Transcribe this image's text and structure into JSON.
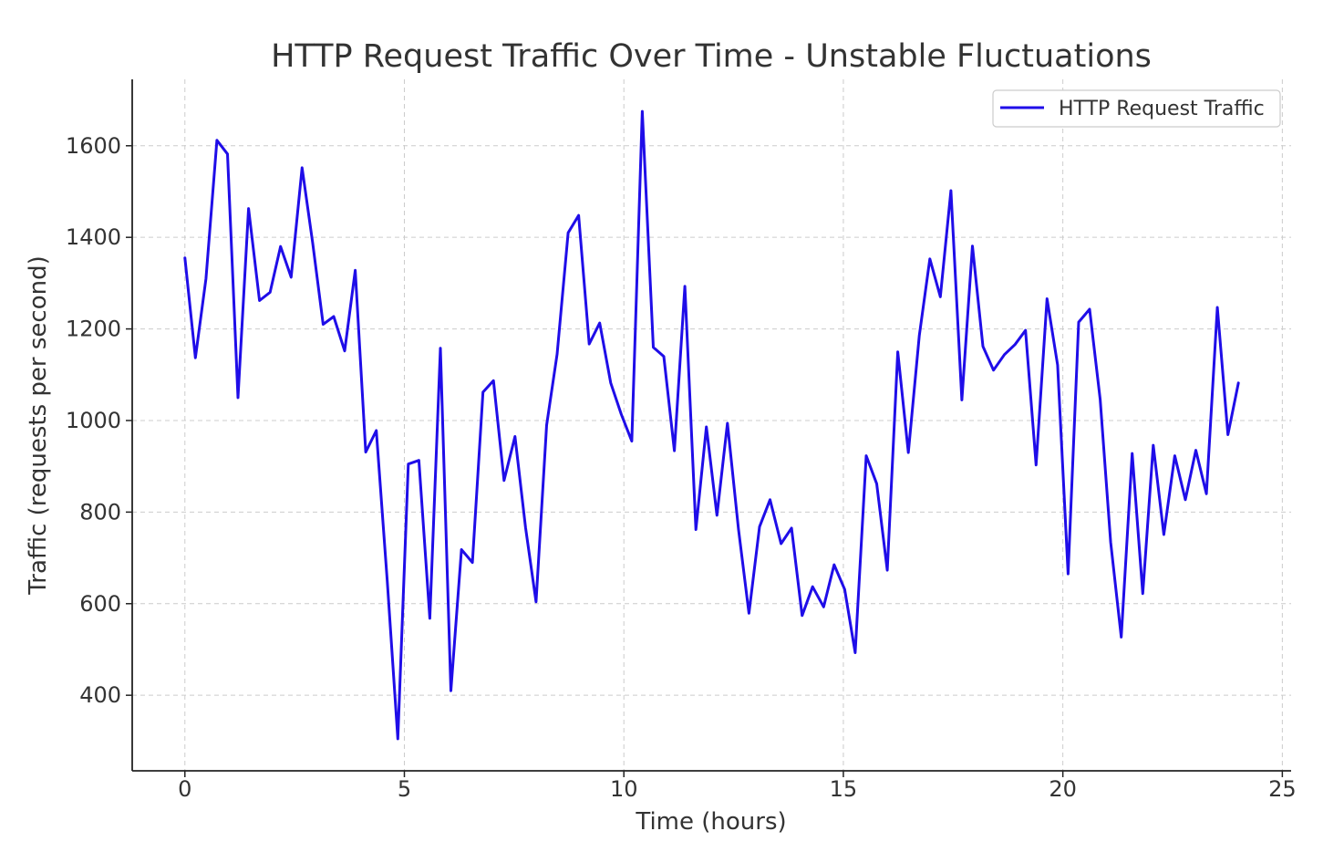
{
  "chart_data": {
    "type": "line",
    "title": "HTTP Request Traffic Over Time - Unstable Fluctuations",
    "xlabel": "Time (hours)",
    "ylabel": "Traffic (requests per second)",
    "xlim": [
      -1.2,
      25.2
    ],
    "ylim": [
      235,
      1745
    ],
    "xticks": [
      0,
      5,
      10,
      15,
      20,
      25
    ],
    "yticks": [
      400,
      600,
      800,
      1000,
      1200,
      1400,
      1600
    ],
    "grid": true,
    "legend_position": "top-right",
    "series": [
      {
        "name": "HTTP Request Traffic",
        "color": "#1f0de8",
        "x": [
          0,
          0.24,
          0.48,
          0.73,
          0.97,
          1.21,
          1.45,
          1.7,
          1.94,
          2.18,
          2.42,
          2.67,
          2.91,
          3.15,
          3.39,
          3.64,
          3.88,
          4.12,
          4.36,
          4.61,
          4.85,
          5.09,
          5.33,
          5.58,
          5.82,
          6.06,
          6.3,
          6.55,
          6.79,
          7.03,
          7.27,
          7.52,
          7.76,
          8.0,
          8.24,
          8.48,
          8.73,
          8.97,
          9.21,
          9.45,
          9.7,
          9.94,
          10.18,
          10.42,
          10.67,
          10.91,
          11.15,
          11.39,
          11.64,
          11.88,
          12.12,
          12.36,
          12.61,
          12.85,
          13.09,
          13.33,
          13.58,
          13.82,
          14.06,
          14.3,
          14.55,
          14.79,
          15.03,
          15.27,
          15.52,
          15.76,
          16.0,
          16.24,
          16.48,
          16.73,
          16.97,
          17.21,
          17.45,
          17.7,
          17.94,
          18.18,
          18.42,
          18.67,
          18.91,
          19.15,
          19.39,
          19.64,
          19.88,
          20.12,
          20.36,
          20.61,
          20.85,
          21.09,
          21.33,
          21.58,
          21.82,
          22.06,
          22.3,
          22.55,
          22.79,
          23.03,
          23.27,
          23.52,
          23.76,
          24.0
        ],
        "y": [
          1355,
          1137,
          1310,
          1612,
          1582,
          1050,
          1463,
          1262,
          1280,
          1380,
          1313,
          1552,
          1388,
          1210,
          1227,
          1152,
          1328,
          931,
          978,
          650,
          305,
          905,
          913,
          568,
          1158,
          410,
          718,
          690,
          1062,
          1087,
          869,
          965,
          766,
          604,
          990,
          1145,
          1410,
          1448,
          1167,
          1213,
          1082,
          1014,
          955,
          1675,
          1160,
          1140,
          934,
          1293,
          762,
          986,
          793,
          994,
          763,
          579,
          768,
          827,
          731,
          765,
          574,
          637,
          593,
          685,
          631,
          493,
          923,
          862,
          673,
          1150,
          930,
          1185,
          1353,
          1270,
          1502,
          1045,
          1381,
          1162,
          1110,
          1144,
          1166,
          1197,
          903,
          1266,
          1121,
          665,
          1215,
          1243,
          1046,
          734,
          527,
          928,
          622,
          946,
          751,
          923,
          827,
          935,
          840,
          1247,
          969,
          1082
        ]
      }
    ]
  }
}
